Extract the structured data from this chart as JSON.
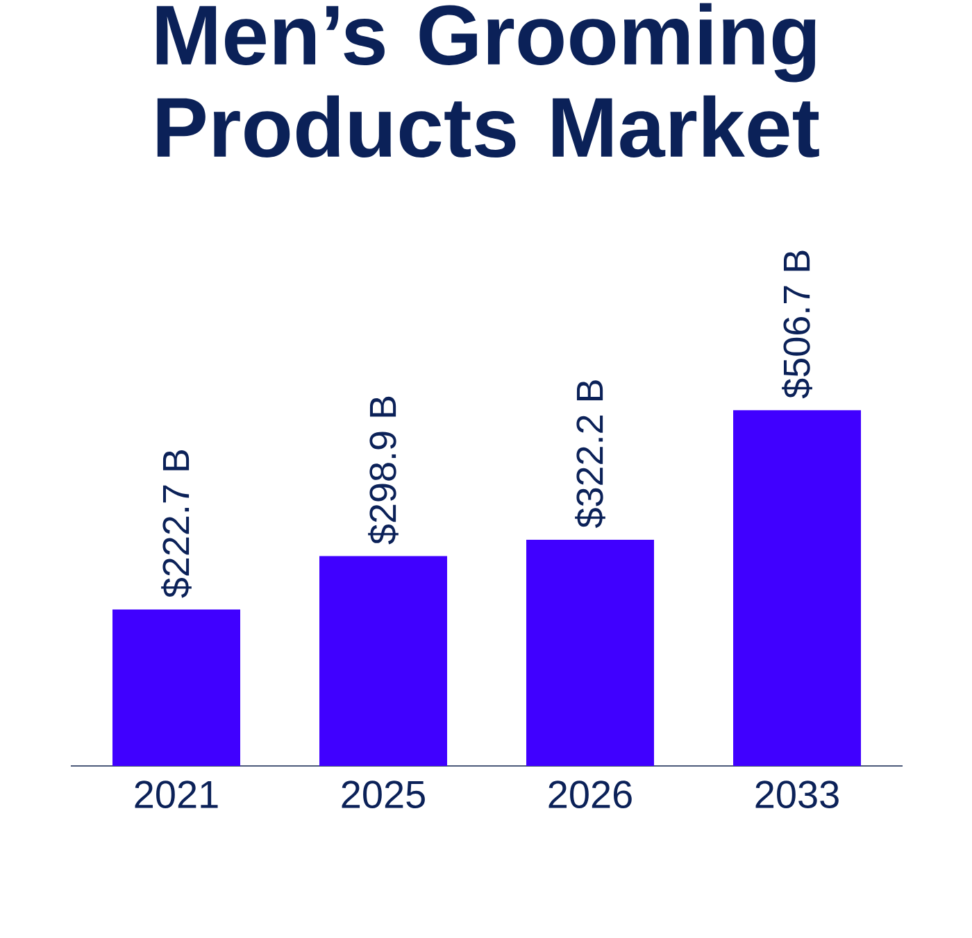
{
  "chart_data": {
    "type": "bar",
    "title": "Men’s Grooming Products Market",
    "categories": [
      "2021",
      "2025",
      "2026",
      "2033"
    ],
    "values": [
      222.7,
      298.9,
      322.2,
      506.7
    ],
    "value_labels": [
      "$222.7 B",
      "$298.9 B",
      "$322.2 B",
      "$506.7 B"
    ],
    "color": "#4000ff"
  }
}
